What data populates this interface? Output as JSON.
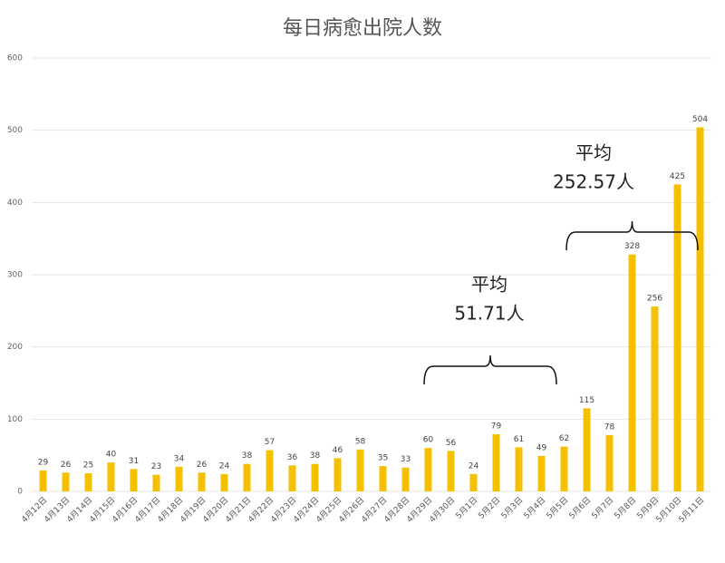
{
  "chart_data": {
    "type": "bar",
    "title": "每日病愈出院人数",
    "categories": [
      "4月12日",
      "4月13日",
      "4月14日",
      "4月15日",
      "4月16日",
      "4月17日",
      "4月18日",
      "4月19日",
      "4月20日",
      "4月21日",
      "4月22日",
      "4月23日",
      "4月24日",
      "4月25日",
      "4月26日",
      "4月27日",
      "4月28日",
      "4月29日",
      "4月30日",
      "5月1日",
      "5月2日",
      "5月3日",
      "5月4日",
      "5月5日",
      "5月6日",
      "5月7日",
      "5月8日",
      "5月9日",
      "5月10日",
      "5月11日"
    ],
    "values": [
      29,
      26,
      25,
      40,
      31,
      23,
      34,
      26,
      24,
      38,
      57,
      36,
      38,
      46,
      58,
      35,
      33,
      60,
      56,
      24,
      79,
      61,
      49,
      62,
      115,
      78,
      328,
      256,
      425,
      504
    ],
    "color": "#f5c000",
    "ylim": [
      0,
      600
    ],
    "yticks": [
      0,
      100,
      200,
      300,
      400,
      500,
      600
    ],
    "grid": true,
    "annotations": [
      [
        "平均",
        "51.71人"
      ],
      [
        "平均",
        "252.57人"
      ]
    ]
  }
}
